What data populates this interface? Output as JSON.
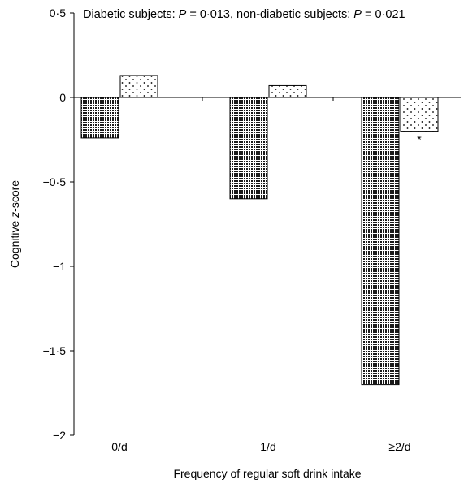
{
  "chart_data": {
    "type": "bar",
    "categories": [
      "0/d",
      "1/d",
      "≥2/d"
    ],
    "series": [
      {
        "name": "",
        "pattern": "dense-dots",
        "values": [
          -0.24,
          -0.6,
          -1.7
        ]
      },
      {
        "name": "",
        "pattern": "sparse-dots",
        "values": [
          0.13,
          0.07,
          -0.2
        ]
      }
    ],
    "significance": [
      "",
      "",
      "*"
    ],
    "title": "",
    "annotation": {
      "line1_a": "Diabetic subjects: ",
      "p_label": "P",
      "line1_b": " = 0·013, non-diabetic subjects: ",
      "line1_c": " = 0·021"
    },
    "xlabel": "Frequency of regular soft drink intake",
    "ylabel": {
      "pre": "Cognitive ",
      "italic": "z",
      "post": "-score"
    },
    "ylim": [
      -2,
      0.5
    ],
    "yticks": [
      0.5,
      0,
      -0.5,
      -1,
      -1.5,
      -2
    ],
    "ytick_labels": [
      "0·5",
      "0",
      "−0·5",
      "−1",
      "−1·5",
      "−2"
    ],
    "grid": false
  }
}
